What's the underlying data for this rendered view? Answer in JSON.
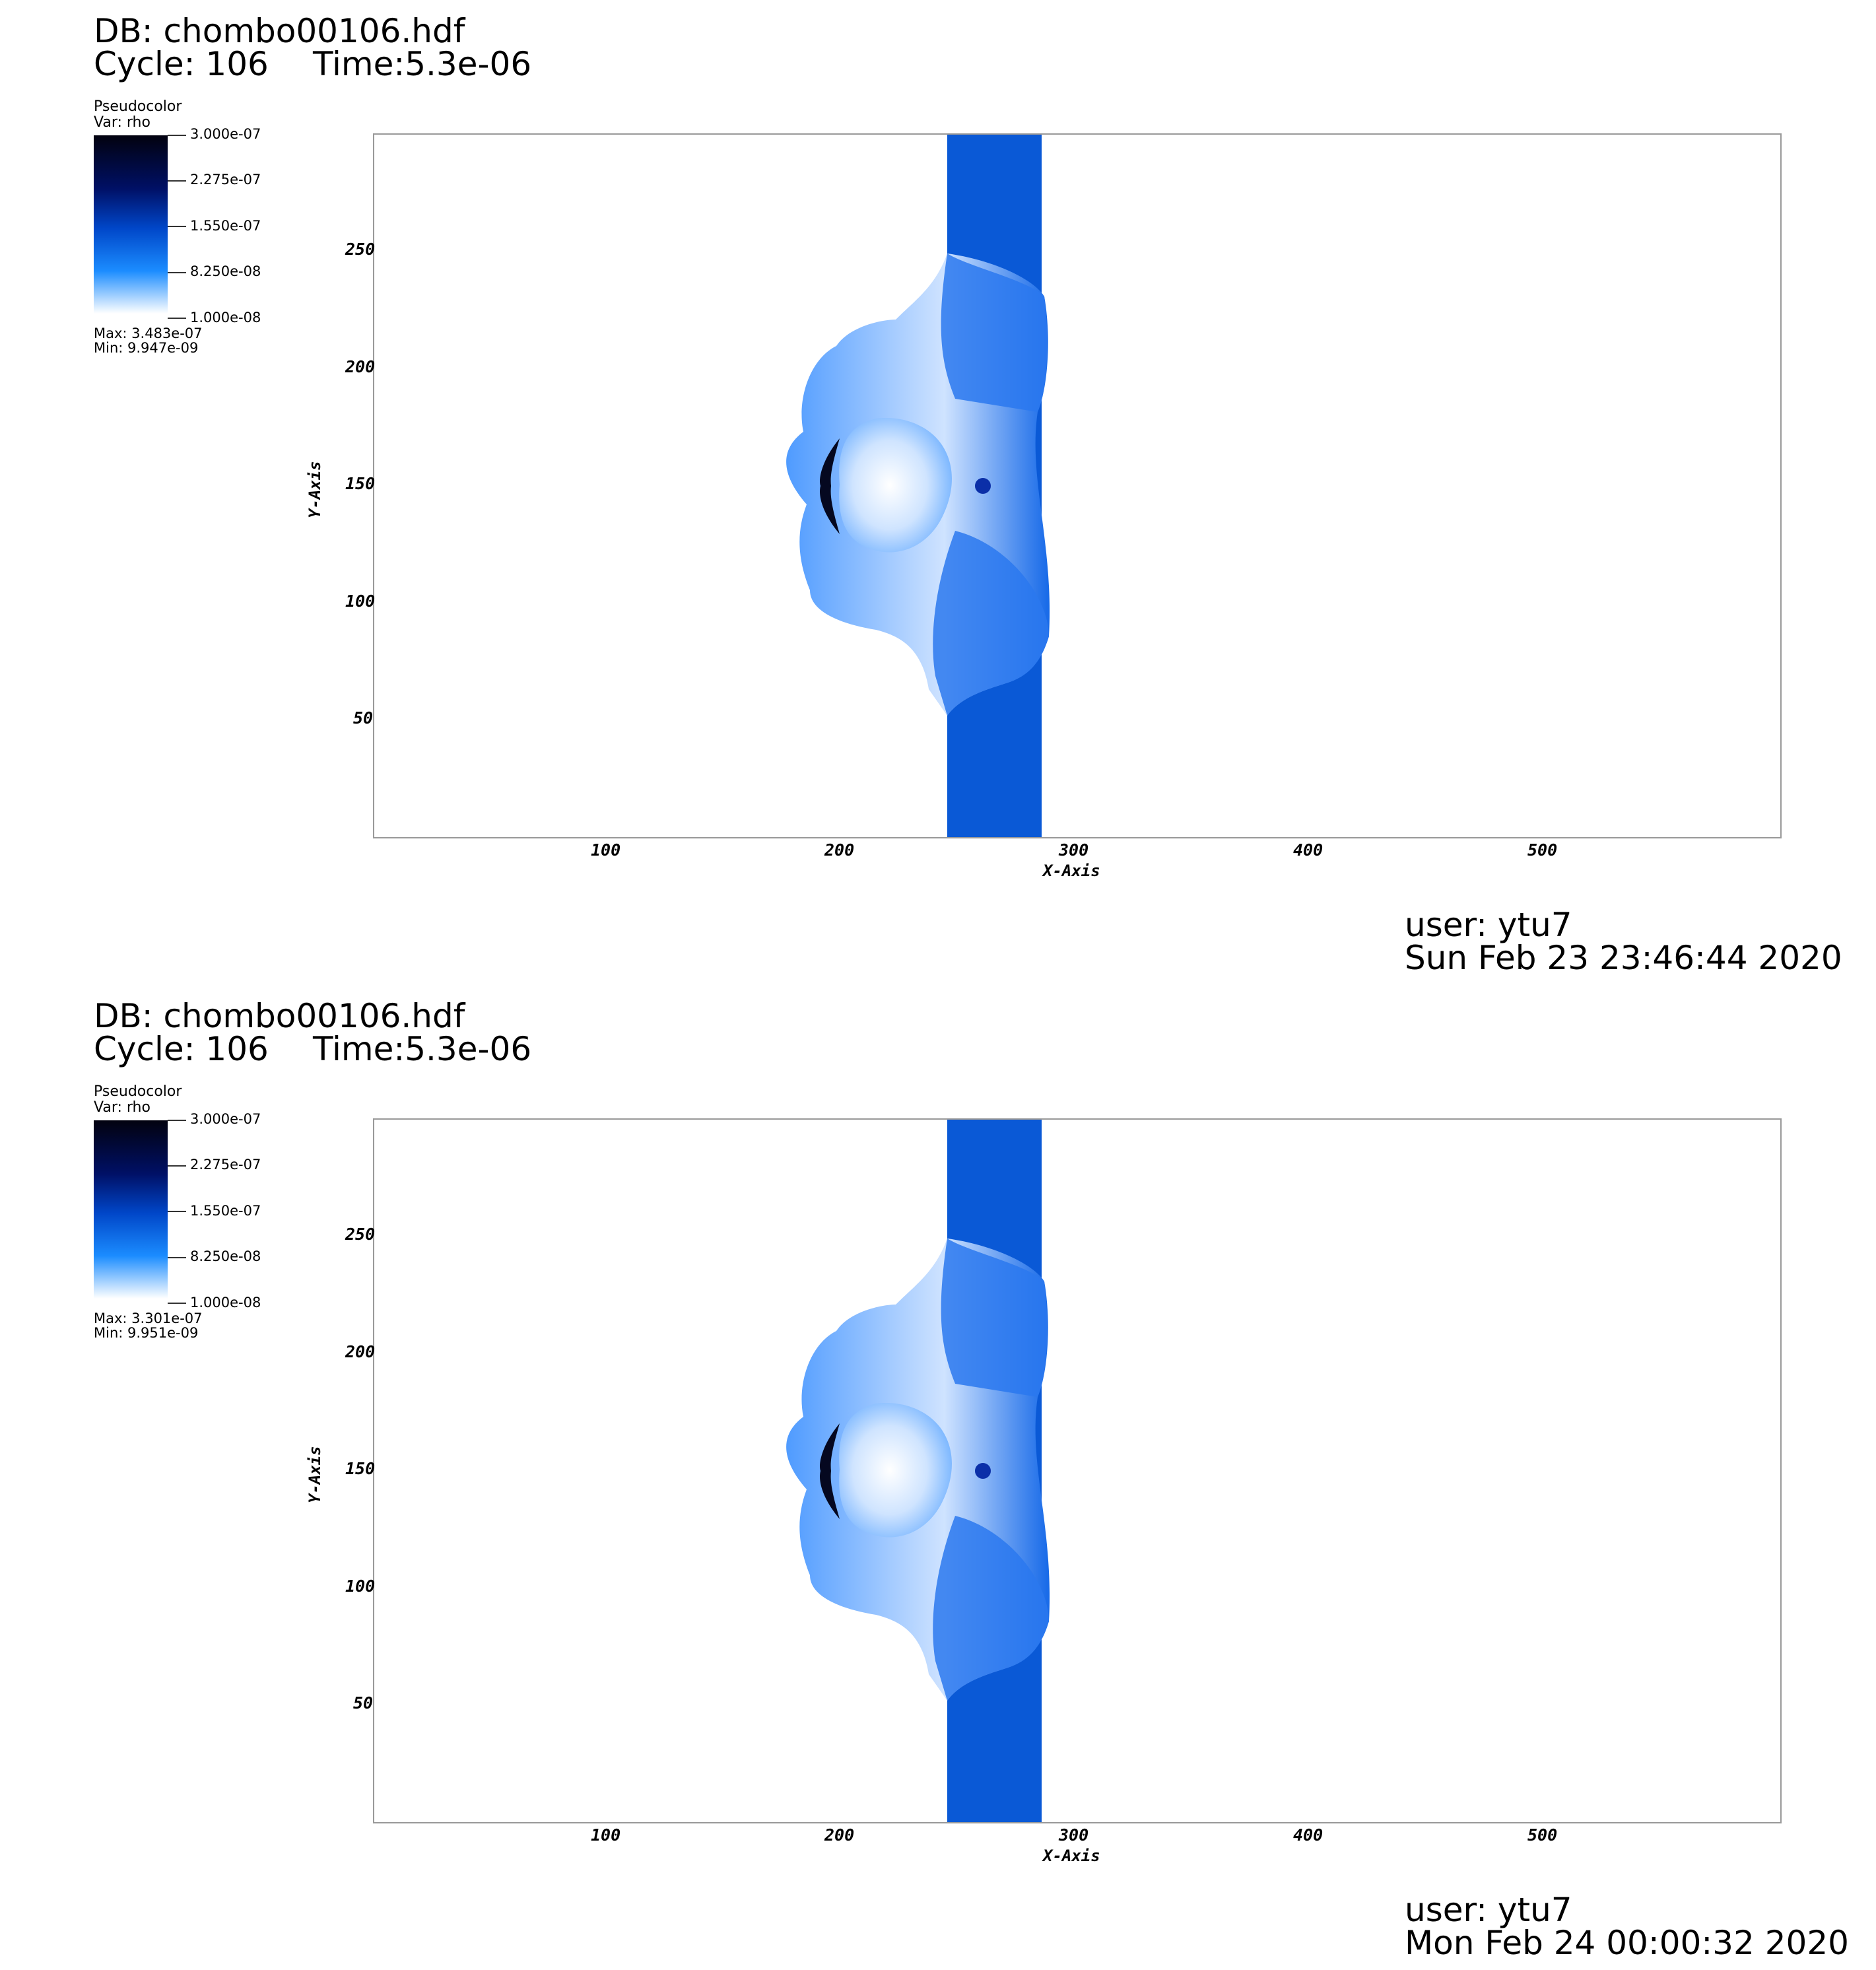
{
  "chart_data": [
    {
      "type": "heatmap",
      "db_label": "DB: chombo00106.hdf",
      "cycle_label": "Cycle: 106",
      "time_label": "Time:5.3e-06",
      "legend": {
        "title": "Pseudocolor",
        "var": "Var: rho",
        "ticks": [
          "3.000e-07",
          "2.275e-07",
          "1.550e-07",
          "8.250e-08",
          "1.000e-08"
        ],
        "max": "Max:  3.483e-07",
        "min": "Min:  9.947e-09",
        "colors": [
          "#02020f",
          "#001066",
          "#0046c8",
          "#1b8cff",
          "#ffffff"
        ]
      },
      "xlabel": "X-Axis",
      "ylabel": "Y-Axis",
      "xticks": [
        100,
        200,
        300,
        400,
        500
      ],
      "yticks": [
        50,
        100,
        150,
        200,
        250
      ],
      "xlim": [
        0,
        600
      ],
      "ylim": [
        0,
        300
      ],
      "user": "user: ytu7",
      "date": "Sun Feb 23 23:46:44 2020"
    },
    {
      "type": "heatmap",
      "db_label": "DB: chombo00106.hdf",
      "cycle_label": "Cycle: 106",
      "time_label": "Time:5.3e-06",
      "legend": {
        "title": "Pseudocolor",
        "var": "Var: rho",
        "ticks": [
          "3.000e-07",
          "2.275e-07",
          "1.550e-07",
          "8.250e-08",
          "1.000e-08"
        ],
        "max": "Max:  3.301e-07",
        "min": "Min:  9.951e-09",
        "colors": [
          "#02020f",
          "#001066",
          "#0046c8",
          "#1b8cff",
          "#ffffff"
        ]
      },
      "xlabel": "X-Axis",
      "ylabel": "Y-Axis",
      "xticks": [
        100,
        200,
        300,
        400,
        500
      ],
      "yticks": [
        50,
        100,
        150,
        200,
        250
      ],
      "xlim": [
        0,
        600
      ],
      "ylim": [
        0,
        300
      ],
      "user": "user: ytu7",
      "date": "Mon Feb 24 00:00:32 2020"
    }
  ]
}
